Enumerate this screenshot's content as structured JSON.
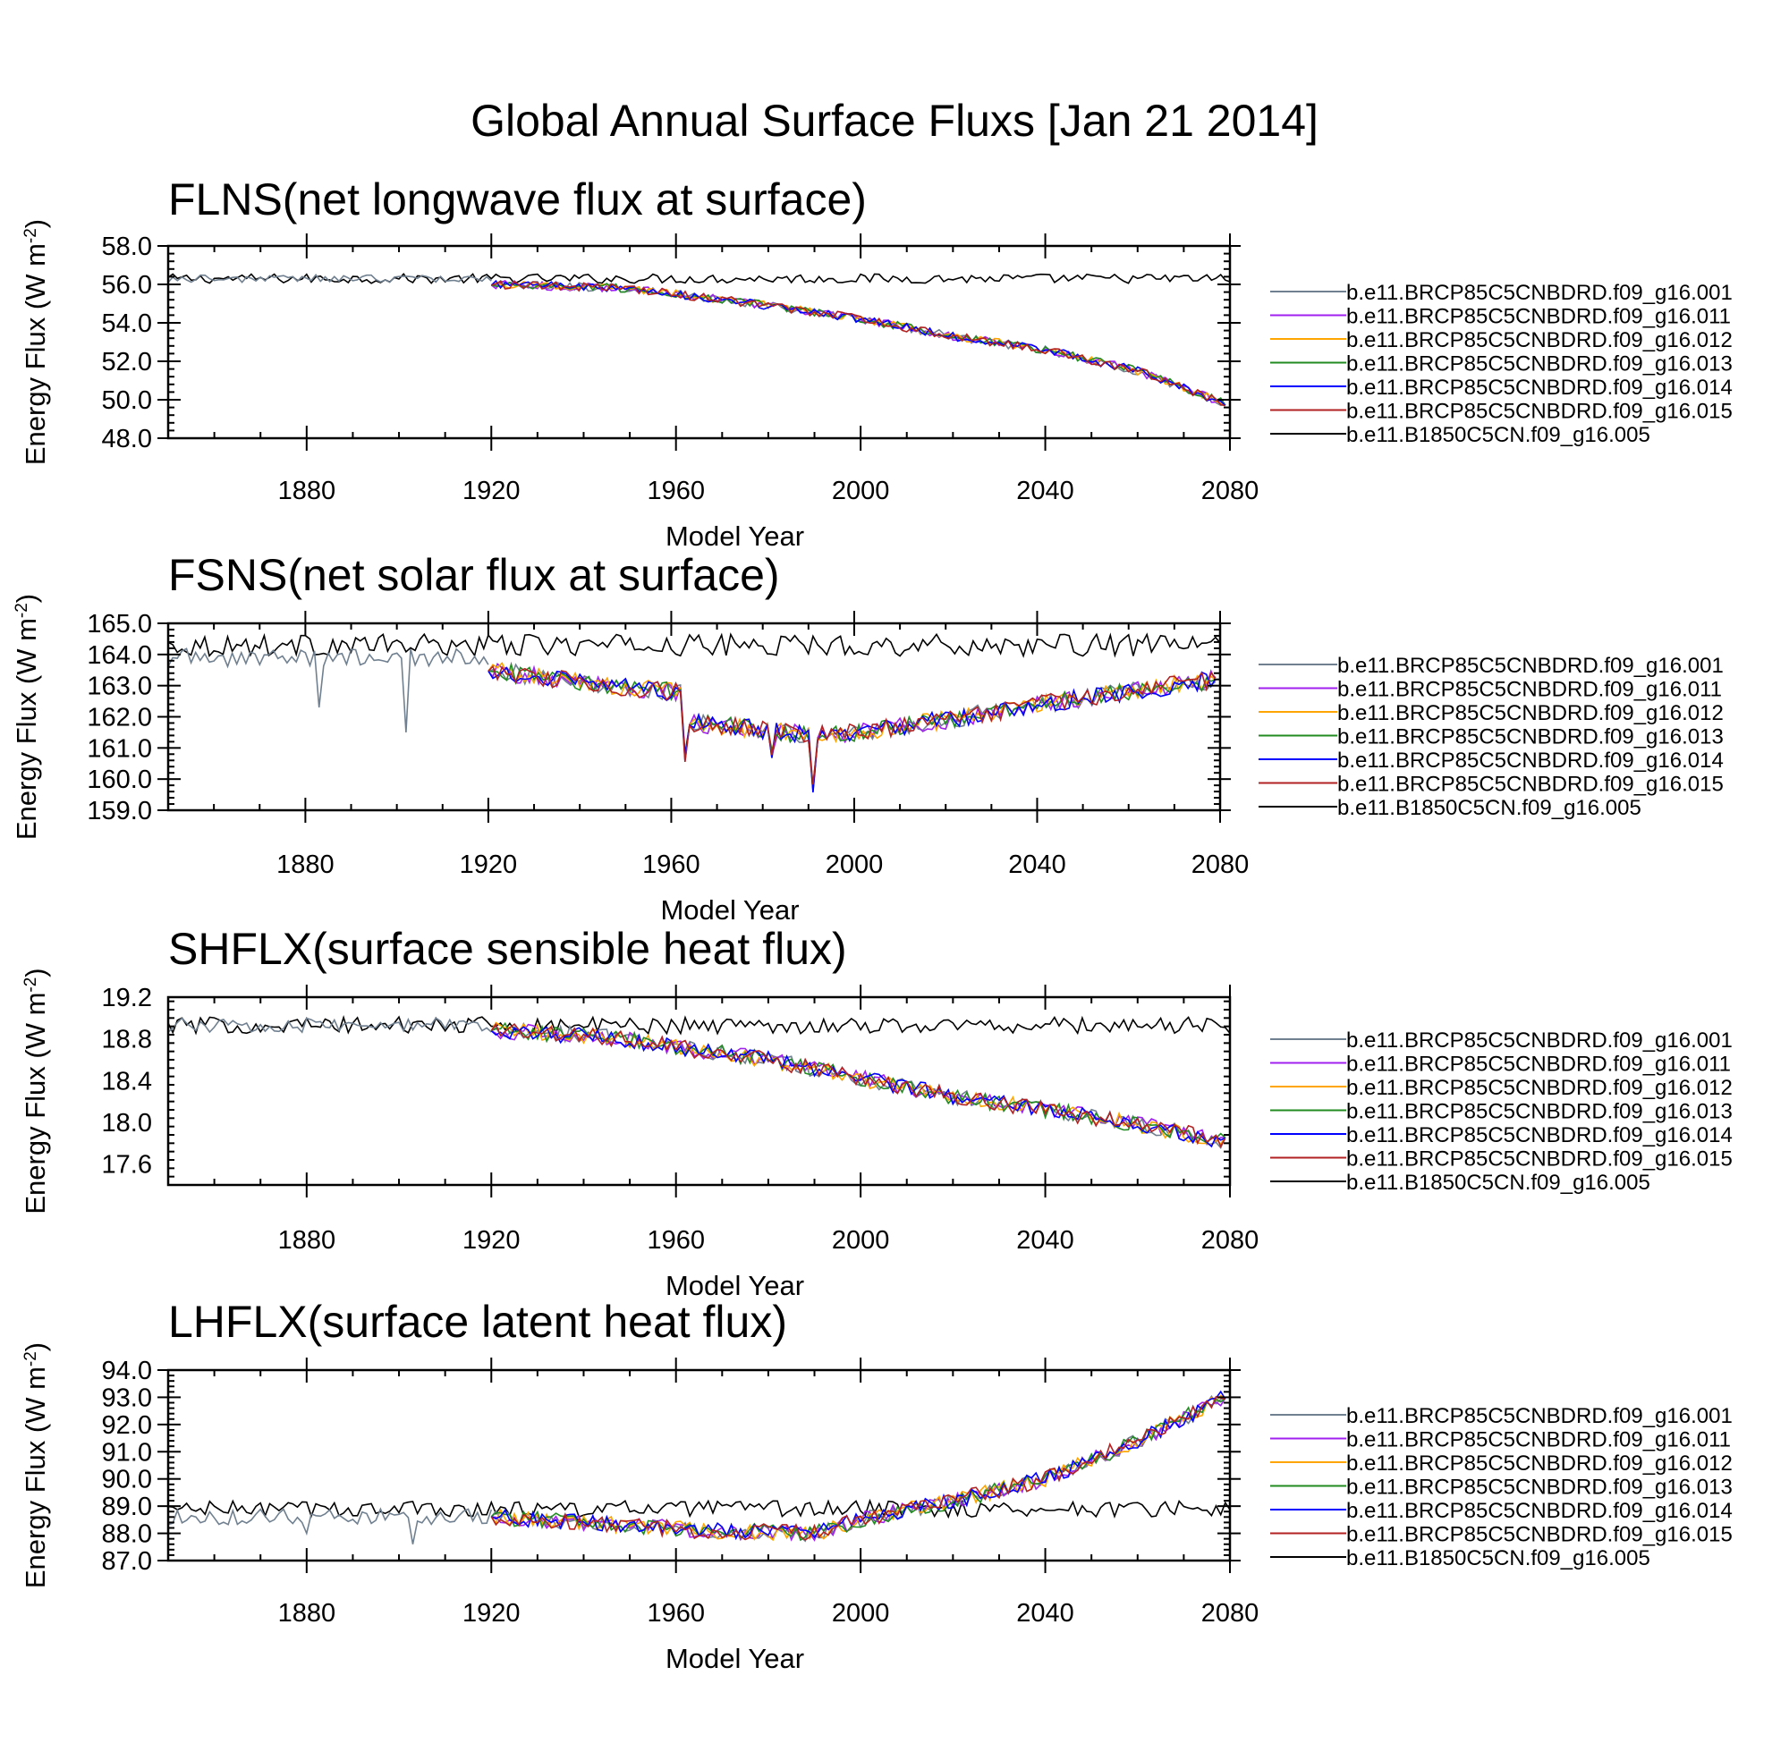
{
  "title": "Global Annual Surface Fluxs [Jan 21 2014]",
  "colors": {
    "b.e11.BRCP85C5CNBDRD.f09_g16.001": "#708090",
    "b.e11.BRCP85C5CNBDRD.f09_g16.011": "#a020f0",
    "b.e11.BRCP85C5CNBDRD.f09_g16.012": "#ffa500",
    "b.e11.BRCP85C5CNBDRD.f09_g16.013": "#228b22",
    "b.e11.BRCP85C5CNBDRD.f09_g16.014": "#0000ff",
    "b.e11.BRCP85C5CNBDRD.f09_g16.015": "#b22222",
    "b.e11.B1850C5CN.f09_g16.005": "#000000"
  },
  "chart_data": [
    {
      "type": "line",
      "title": "FLNS(net longwave flux at surface)",
      "xlabel": "Model Year",
      "ylabel_main": "Energy Flux (W m",
      "ylabel_sup": "-2",
      "ylabel_close": ")",
      "xlim": [
        1850,
        2080
      ],
      "ylim": [
        48.0,
        58.0
      ],
      "xticks": [
        1880,
        1920,
        1960,
        2000,
        2040,
        2080
      ],
      "yticks": [
        48.0,
        50.0,
        52.0,
        54.0,
        56.0,
        58.0
      ],
      "ytick_labels": [
        "48.0",
        "50.0",
        "52.0",
        "54.0",
        "56.0",
        "58.0"
      ],
      "legend": [
        "b.e11.BRCP85C5CNBDRD.f09_g16.001",
        "b.e11.BRCP85C5CNBDRD.f09_g16.011",
        "b.e11.BRCP85C5CNBDRD.f09_g16.012",
        "b.e11.BRCP85C5CNBDRD.f09_g16.013",
        "b.e11.BRCP85C5CNBDRD.f09_g16.014",
        "b.e11.BRCP85C5CNBDRD.f09_g16.015",
        "b.e11.B1850C5CN.f09_g16.005"
      ],
      "control_series": {
        "name": "b.e11.B1850C5CN.f09_g16.005",
        "x_start": 1850,
        "x_end": 2080,
        "mean": 56.3,
        "noise": 0.25
      },
      "historical_series": {
        "name": "b.e11.BRCP85C5CNBDRD.f09_g16.001",
        "x_start": 1850,
        "x_end": 1920,
        "base": 56.3,
        "noise": 0.2
      },
      "ensemble_x_start": 1920,
      "ensemble_x_end": 2079,
      "ensemble_noise": 0.22,
      "trend_points": [
        [
          1920,
          56.0
        ],
        [
          1950,
          55.8
        ],
        [
          1980,
          54.9
        ],
        [
          2000,
          54.2
        ],
        [
          2020,
          53.3
        ],
        [
          2040,
          52.6
        ],
        [
          2060,
          51.5
        ],
        [
          2079,
          49.8
        ]
      ],
      "dips": []
    },
    {
      "type": "line",
      "title": "FSNS(net solar flux at surface)",
      "xlabel": "Model Year",
      "ylabel_main": "Energy Flux (W m",
      "ylabel_sup": "-2",
      "ylabel_close": ")",
      "xlim": [
        1850,
        2080
      ],
      "ylim": [
        159.0,
        165.0
      ],
      "xticks": [
        1880,
        1920,
        1960,
        2000,
        2040,
        2080
      ],
      "yticks": [
        159.0,
        160.0,
        161.0,
        162.0,
        163.0,
        164.0,
        165.0
      ],
      "ytick_labels": [
        "159.0",
        "160.0",
        "161.0",
        "162.0",
        "163.0",
        "164.0",
        "165.0"
      ],
      "legend": [
        "b.e11.BRCP85C5CNBDRD.f09_g16.001",
        "b.e11.BRCP85C5CNBDRD.f09_g16.011",
        "b.e11.BRCP85C5CNBDRD.f09_g16.012",
        "b.e11.BRCP85C5CNBDRD.f09_g16.013",
        "b.e11.BRCP85C5CNBDRD.f09_g16.014",
        "b.e11.BRCP85C5CNBDRD.f09_g16.015",
        "b.e11.B1850C5CN.f09_g16.005"
      ],
      "control_series": {
        "name": "b.e11.B1850C5CN.f09_g16.005",
        "x_start": 1850,
        "x_end": 2080,
        "mean": 164.3,
        "noise": 0.35
      },
      "historical_series": {
        "name": "b.e11.BRCP85C5CNBDRD.f09_g16.001",
        "x_start": 1850,
        "x_end": 1920,
        "base": 163.9,
        "noise": 0.3
      },
      "ensemble_x_start": 1920,
      "ensemble_x_end": 2079,
      "ensemble_noise": 0.3,
      "trend_points": [
        [
          1920,
          163.5
        ],
        [
          1940,
          163.1
        ],
        [
          1960,
          162.8
        ],
        [
          1962,
          162.8
        ],
        [
          1964,
          161.8
        ],
        [
          1980,
          161.6
        ],
        [
          1990,
          161.4
        ],
        [
          2000,
          161.5
        ],
        [
          2020,
          161.9
        ],
        [
          2040,
          162.4
        ],
        [
          2060,
          162.8
        ],
        [
          2079,
          163.2
        ]
      ],
      "dips": [
        [
          1883,
          162.3
        ],
        [
          1902,
          161.5
        ],
        [
          1963,
          160.7
        ],
        [
          1982,
          160.8
        ],
        [
          1991,
          159.7
        ]
      ]
    },
    {
      "type": "line",
      "title": "SHFLX(surface sensible heat flux)",
      "xlabel": "Model Year",
      "ylabel_main": "Energy Flux (W m",
      "ylabel_sup": "-2",
      "ylabel_close": ")",
      "xlim": [
        1850,
        2080
      ],
      "ylim": [
        17.4,
        19.2
      ],
      "xticks": [
        1880,
        1920,
        1960,
        2000,
        2040,
        2080
      ],
      "yticks": [
        17.6,
        18.0,
        18.4,
        18.8,
        19.2
      ],
      "ytick_labels": [
        "17.6",
        "18.0",
        "18.4",
        "18.8",
        "19.2"
      ],
      "legend": [
        "b.e11.BRCP85C5CNBDRD.f09_g16.001",
        "b.e11.BRCP85C5CNBDRD.f09_g16.011",
        "b.e11.BRCP85C5CNBDRD.f09_g16.012",
        "b.e11.BRCP85C5CNBDRD.f09_g16.013",
        "b.e11.BRCP85C5CNBDRD.f09_g16.014",
        "b.e11.BRCP85C5CNBDRD.f09_g16.015",
        "b.e11.B1850C5CN.f09_g16.005"
      ],
      "control_series": {
        "name": "b.e11.B1850C5CN.f09_g16.005",
        "x_start": 1850,
        "x_end": 2080,
        "mean": 18.93,
        "noise": 0.08
      },
      "historical_series": {
        "name": "b.e11.BRCP85C5CNBDRD.f09_g16.001",
        "x_start": 1850,
        "x_end": 1920,
        "base": 18.93,
        "noise": 0.07
      },
      "ensemble_x_start": 1920,
      "ensemble_x_end": 2079,
      "ensemble_noise": 0.08,
      "trend_points": [
        [
          1920,
          18.88
        ],
        [
          1945,
          18.82
        ],
        [
          1960,
          18.72
        ],
        [
          1980,
          18.6
        ],
        [
          2000,
          18.42
        ],
        [
          2020,
          18.25
        ],
        [
          2040,
          18.12
        ],
        [
          2060,
          17.98
        ],
        [
          2079,
          17.82
        ]
      ],
      "dips": []
    },
    {
      "type": "line",
      "title": "LHFLX(surface latent heat flux)",
      "xlabel": "Model Year",
      "ylabel_main": "Energy Flux (W m",
      "ylabel_sup": "-2",
      "ylabel_close": ")",
      "xlim": [
        1850,
        2080
      ],
      "ylim": [
        87.0,
        94.0
      ],
      "xticks": [
        1880,
        1920,
        1960,
        2000,
        2040,
        2080
      ],
      "yticks": [
        87.0,
        88.0,
        89.0,
        90.0,
        91.0,
        92.0,
        93.0,
        94.0
      ],
      "ytick_labels": [
        "87.0",
        "88.0",
        "89.0",
        "90.0",
        "91.0",
        "92.0",
        "93.0",
        "94.0"
      ],
      "legend": [
        "b.e11.BRCP85C5CNBDRD.f09_g16.001",
        "b.e11.BRCP85C5CNBDRD.f09_g16.011",
        "b.e11.BRCP85C5CNBDRD.f09_g16.012",
        "b.e11.BRCP85C5CNBDRD.f09_g16.013",
        "b.e11.BRCP85C5CNBDRD.f09_g16.014",
        "b.e11.BRCP85C5CNBDRD.f09_g16.015",
        "b.e11.B1850C5CN.f09_g16.005"
      ],
      "control_series": {
        "name": "b.e11.B1850C5CN.f09_g16.005",
        "x_start": 1850,
        "x_end": 2080,
        "mean": 88.9,
        "noise": 0.3
      },
      "historical_series": {
        "name": "b.e11.BRCP85C5CNBDRD.f09_g16.001",
        "x_start": 1850,
        "x_end": 1920,
        "base": 88.6,
        "noise": 0.3
      },
      "ensemble_x_start": 1920,
      "ensemble_x_end": 2079,
      "ensemble_noise": 0.3,
      "trend_points": [
        [
          1920,
          88.6
        ],
        [
          1950,
          88.3
        ],
        [
          1965,
          88.1
        ],
        [
          1990,
          88.0
        ],
        [
          2000,
          88.5
        ],
        [
          2020,
          89.2
        ],
        [
          2040,
          90.0
        ],
        [
          2060,
          91.4
        ],
        [
          2079,
          93.0
        ]
      ],
      "dips": [
        [
          1880,
          88.0
        ],
        [
          1903,
          87.6
        ]
      ]
    }
  ]
}
